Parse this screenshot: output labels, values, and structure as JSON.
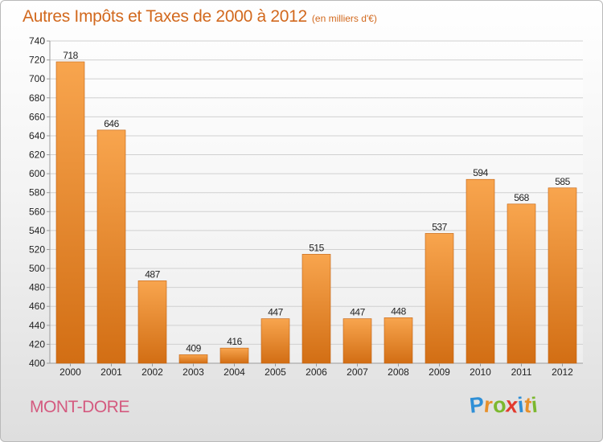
{
  "chart_data": {
    "type": "bar",
    "title": "Autres Impôts et Taxes de 2000 à 2012",
    "unit": "(en milliers d'€)",
    "categories": [
      "2000",
      "2001",
      "2002",
      "2003",
      "2004",
      "2005",
      "2006",
      "2007",
      "2008",
      "2009",
      "2010",
      "2011",
      "2012"
    ],
    "values": [
      718,
      646,
      487,
      409,
      416,
      447,
      515,
      447,
      448,
      537,
      594,
      568,
      585
    ],
    "ylim": [
      400,
      740
    ],
    "yticks": [
      400,
      420,
      440,
      460,
      480,
      500,
      520,
      540,
      560,
      580,
      600,
      620,
      640,
      660,
      680,
      700,
      720,
      740
    ],
    "grid": true,
    "legend": "none",
    "colors": {
      "bar_light": "#f8a54e",
      "bar_dark": "#d26e14",
      "grid": "#d0d0d0",
      "axis": "#9a9a9a",
      "title": "#d2691e",
      "label": "#222222"
    }
  },
  "footer": {
    "place": "MONT-DORE",
    "logo_letters": [
      {
        "ch": "P",
        "color": "#2f8fd6"
      },
      {
        "ch": "r",
        "color": "#e8902a"
      },
      {
        "ch": "o",
        "color": "#7cb82f"
      },
      {
        "ch": "x",
        "color": "#e23a2e"
      },
      {
        "ch": "i",
        "color": "#2f8fd6"
      },
      {
        "ch": "t",
        "color": "#e8902a"
      },
      {
        "ch": "i",
        "color": "#7cb82f"
      }
    ]
  }
}
